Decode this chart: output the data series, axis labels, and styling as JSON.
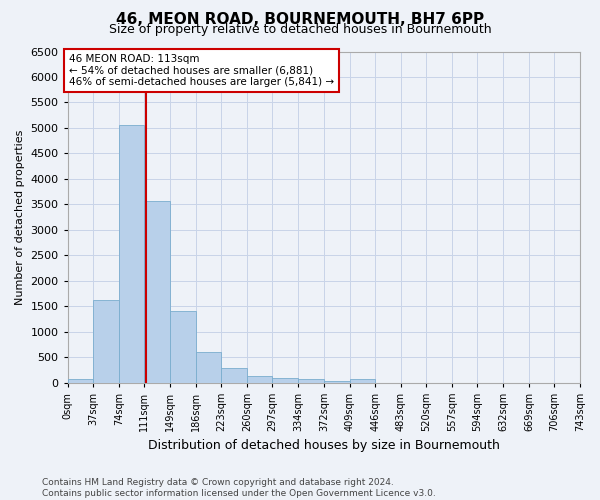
{
  "title": "46, MEON ROAD, BOURNEMOUTH, BH7 6PP",
  "subtitle": "Size of property relative to detached houses in Bournemouth",
  "xlabel": "Distribution of detached houses by size in Bournemouth",
  "ylabel": "Number of detached properties",
  "bin_edges": [
    0,
    37,
    74,
    111,
    149,
    186,
    223,
    260,
    297,
    334,
    372,
    409,
    446,
    483,
    520,
    557,
    594,
    632,
    669,
    706,
    743
  ],
  "bar_heights": [
    75,
    1620,
    5060,
    3570,
    1410,
    610,
    280,
    130,
    90,
    65,
    35,
    65,
    0,
    0,
    0,
    0,
    0,
    0,
    0,
    0
  ],
  "bar_color": "#b8d0ea",
  "bar_edge_color": "#7aadce",
  "grid_color": "#c8d4e8",
  "property_size": 113,
  "vline_color": "#cc0000",
  "annotation_line1": "46 MEON ROAD: 113sqm",
  "annotation_line2": "← 54% of detached houses are smaller (6,881)",
  "annotation_line3": "46% of semi-detached houses are larger (5,841) →",
  "annotation_box_color": "#ffffff",
  "annotation_box_edgecolor": "#cc0000",
  "annotation_fontsize": 7.5,
  "ylim": [
    0,
    6500
  ],
  "yticks": [
    0,
    500,
    1000,
    1500,
    2000,
    2500,
    3000,
    3500,
    4000,
    4500,
    5000,
    5500,
    6000,
    6500
  ],
  "footer_line1": "Contains HM Land Registry data © Crown copyright and database right 2024.",
  "footer_line2": "Contains public sector information licensed under the Open Government Licence v3.0.",
  "background_color": "#eef2f8",
  "title_fontsize": 11,
  "subtitle_fontsize": 9,
  "xlabel_fontsize": 9,
  "ylabel_fontsize": 8,
  "footer_fontsize": 6.5
}
